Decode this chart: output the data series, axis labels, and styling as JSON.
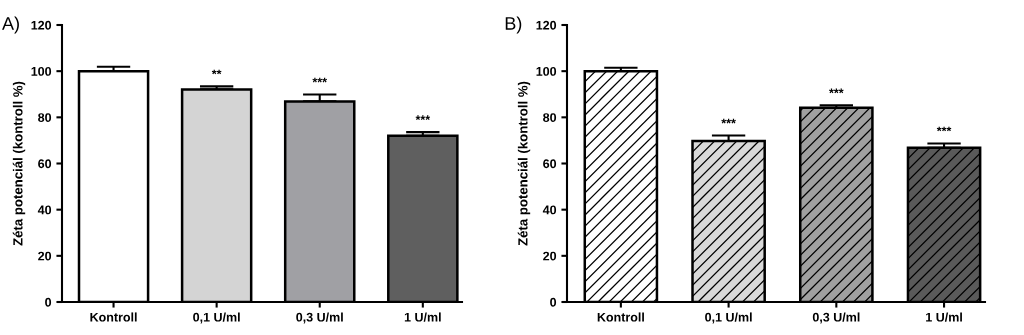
{
  "chart_data": [
    {
      "type": "bar",
      "title": "A)",
      "ylabel": "Zéta potenciál (kontroll %)",
      "categories": [
        "Kontroll",
        "0,1 U/ml",
        "0,3 U/ml",
        "1 U/ml"
      ],
      "values": [
        100,
        92.1,
        86.9,
        72.0
      ],
      "errors": [
        1.9,
        1.3,
        3.0,
        1.6
      ],
      "colors": [
        "#ffffff",
        "#d4d4d4",
        "#a0a0a4",
        "#5f5f5f"
      ],
      "ylim": [
        0,
        120
      ],
      "yticks": [
        0,
        20,
        40,
        60,
        80,
        100,
        120
      ],
      "grid": false,
      "legend": false,
      "annotations": [
        {
          "text": "**",
          "x": "0,1 U/ml",
          "y": 93.4
        },
        {
          "text": "***",
          "x": "0,3 U/ml",
          "y": 89.9
        },
        {
          "text": "***",
          "x": "1 U/ml",
          "y": 73.6
        }
      ]
    },
    {
      "type": "bar",
      "title": "B)",
      "ylabel": "Zéta potenciál (kontroll %)",
      "categories": [
        "Kontroll",
        "0,1 U/ml",
        "0,3 U/ml",
        "1 U/ml"
      ],
      "values": [
        100,
        69.7,
        84.1,
        66.8
      ],
      "errors": [
        1.5,
        2.4,
        1.1,
        1.9
      ],
      "colors": [
        "#ffffff",
        "#d9d9d9",
        "#a0a0a0",
        "#5a5a5a"
      ],
      "ylim": [
        0,
        120
      ],
      "yticks": [
        0,
        20,
        40,
        60,
        80,
        100,
        120
      ],
      "grid": false,
      "legend": false,
      "annotations": [
        {
          "text": "***",
          "x": "0,1 U/ml",
          "y": 72.1
        },
        {
          "text": "***",
          "x": "0,3 U/ml",
          "y": 85.2
        },
        {
          "text": "***",
          "x": "1 U/ml",
          "y": 68.7
        }
      ]
    }
  ]
}
